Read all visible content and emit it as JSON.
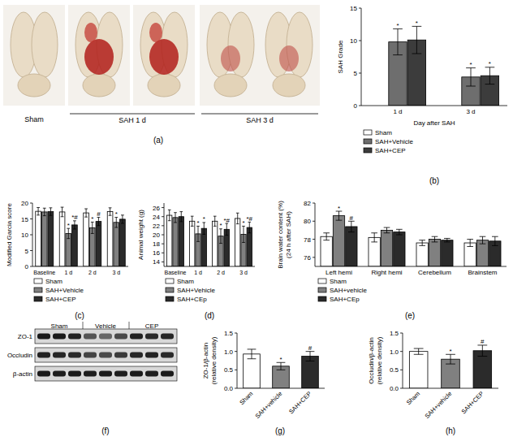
{
  "chart_data": [
    {
      "type": "bar",
      "panel": "(b)",
      "y_label": [
        "SAH Grade"
      ],
      "x_label": "Day after SAH",
      "categories": [
        "1 d",
        "3 d"
      ],
      "ylim": [
        0,
        15
      ],
      "yticks": [
        0,
        5,
        10,
        15
      ],
      "series": [
        {
          "name": "Sham",
          "color": "#ffffff",
          "values": [
            null,
            null
          ],
          "errors": [
            null,
            null
          ],
          "annotations": [
            null,
            null
          ]
        },
        {
          "name": "SAH+Vehicle",
          "color": "#6e6e6e",
          "values": [
            9.8,
            4.4
          ],
          "errors": [
            2.0,
            1.4
          ],
          "annotations": [
            "*",
            "*"
          ]
        },
        {
          "name": "SAH+CEP",
          "color": "#3c3c3c",
          "values": [
            10.1,
            4.6
          ],
          "errors": [
            2.1,
            1.3
          ],
          "annotations": [
            "*",
            "*"
          ]
        }
      ]
    },
    {
      "type": "bar",
      "panel": "(c)",
      "y_label": [
        "Modified Garcia score"
      ],
      "categories": [
        "Baseline",
        "1 d",
        "2 d",
        "3 d"
      ],
      "ylim": [
        0,
        20
      ],
      "yticks": [
        0,
        5,
        10,
        15,
        20
      ],
      "series": [
        {
          "name": "Sham",
          "color": "#ffffff",
          "values": [
            17.4,
            17.2,
            16.9,
            17.3
          ],
          "errors": [
            1.2,
            1.5,
            1.3,
            1.2
          ],
          "annotations": [
            null,
            null,
            null,
            null
          ]
        },
        {
          "name": "SAH+Vehicle",
          "color": "#808080",
          "values": [
            17.2,
            10.4,
            12.2,
            13.9
          ],
          "errors": [
            1.2,
            1.6,
            1.8,
            1.6
          ],
          "annotations": [
            null,
            "*",
            "*",
            "*"
          ]
        },
        {
          "name": "SAH+CEP",
          "color": "#2b2b2b",
          "values": [
            17.3,
            13.1,
            14.2,
            14.9
          ],
          "errors": [
            1.2,
            1.3,
            1.3,
            1.3
          ],
          "annotations": [
            null,
            "*#",
            "#",
            null
          ]
        }
      ]
    },
    {
      "type": "bar",
      "panel": "(d)",
      "y_label": [
        "Animal weight (g)"
      ],
      "categories": [
        "Baseline",
        "1 d",
        "2 d",
        "3 d"
      ],
      "ylim": [
        13,
        27
      ],
      "yticks": [
        14,
        16,
        18,
        20,
        22,
        24,
        26
      ],
      "series": [
        {
          "name": "Sham",
          "color": "#ffffff",
          "values": [
            24.3,
            23.0,
            23.0,
            23.6
          ],
          "errors": [
            1.2,
            1.1,
            1.1,
            1.2
          ],
          "annotations": [
            null,
            null,
            null,
            null
          ]
        },
        {
          "name": "SAH+Vehicle",
          "color": "#808080",
          "values": [
            23.8,
            20.2,
            19.7,
            20.1
          ],
          "errors": [
            1.1,
            1.7,
            1.6,
            1.8
          ],
          "annotations": [
            null,
            "*",
            "*",
            "*"
          ]
        },
        {
          "name": "SAH+CEp",
          "color": "#2b2b2b",
          "values": [
            24.0,
            21.4,
            21.2,
            21.6
          ],
          "errors": [
            1.1,
            1.3,
            1.3,
            1.2
          ],
          "annotations": [
            null,
            "*",
            "*#",
            "*#"
          ]
        }
      ]
    },
    {
      "type": "bar",
      "panel": "(e)",
      "y_label": [
        "Brain water content (%)",
        "(24 h after SAH)"
      ],
      "categories": [
        "Left hemi",
        "Right hemi",
        "Cerebellum",
        "Brainstem"
      ],
      "ylim": [
        75,
        82
      ],
      "yticks": [
        76,
        78,
        80,
        82
      ],
      "series": [
        {
          "name": "Sham",
          "color": "#ffffff",
          "values": [
            78.3,
            78.2,
            77.6,
            77.6
          ],
          "errors": [
            0.4,
            0.5,
            0.3,
            0.4
          ],
          "annotations": [
            null,
            null,
            null,
            null
          ]
        },
        {
          "name": "SAH+vehicle",
          "color": "#808080",
          "values": [
            80.6,
            79.0,
            78.0,
            77.9
          ],
          "errors": [
            0.5,
            0.3,
            0.3,
            0.4
          ],
          "annotations": [
            "*",
            null,
            null,
            null
          ]
        },
        {
          "name": "SAH+CEp",
          "color": "#2b2b2b",
          "values": [
            79.4,
            78.8,
            77.9,
            77.8
          ],
          "errors": [
            0.6,
            0.3,
            0.2,
            0.5
          ],
          "annotations": [
            "#",
            null,
            null,
            null
          ]
        }
      ]
    },
    {
      "type": "bar",
      "panel": "(g)",
      "y_label": [
        "ZO-1/β-actin",
        "(relative density)"
      ],
      "categories": [
        "Sham",
        "SAH+vehicle",
        "SAH+CEP"
      ],
      "ylim": [
        0,
        1.5
      ],
      "yticks": [
        {
          "value": 0,
          "label": "0.0"
        },
        0.5,
        {
          "value": 1,
          "label": "1.0"
        },
        1.5
      ],
      "values": [
        0.93,
        0.6,
        0.87
      ],
      "errors": [
        0.13,
        0.1,
        0.13
      ],
      "annotations": [
        null,
        "*",
        "#"
      ],
      "colors": [
        "#ffffff",
        "#808080",
        "#2b2b2b"
      ]
    },
    {
      "type": "bar",
      "panel": "(h)",
      "y_label": [
        "Occludin/β-actin",
        "(relative density)"
      ],
      "categories": [
        "Sham",
        "SAH+vehicle",
        "SAH+CEP"
      ],
      "ylim": [
        0,
        1.5
      ],
      "yticks": [
        {
          "value": 0,
          "label": "0.0"
        },
        0.5,
        {
          "value": 1,
          "label": "1.0"
        },
        1.5
      ],
      "values": [
        1.0,
        0.79,
        1.02
      ],
      "errors": [
        0.08,
        0.13,
        0.15
      ],
      "annotations": [
        null,
        "*",
        "#"
      ],
      "colors": [
        "#ffffff",
        "#808080",
        "#2b2b2b"
      ]
    }
  ],
  "figure": {
    "a": {
      "panel": "(a)",
      "labels": [
        "Sham",
        "SAH 1 d",
        "SAH 3 d"
      ]
    },
    "f": {
      "panel": "(f)",
      "lanes": [
        "Sham",
        "Vehicle",
        "CEP"
      ],
      "proteins": [
        "ZO-1",
        "Occludin",
        "β-actin"
      ]
    }
  }
}
